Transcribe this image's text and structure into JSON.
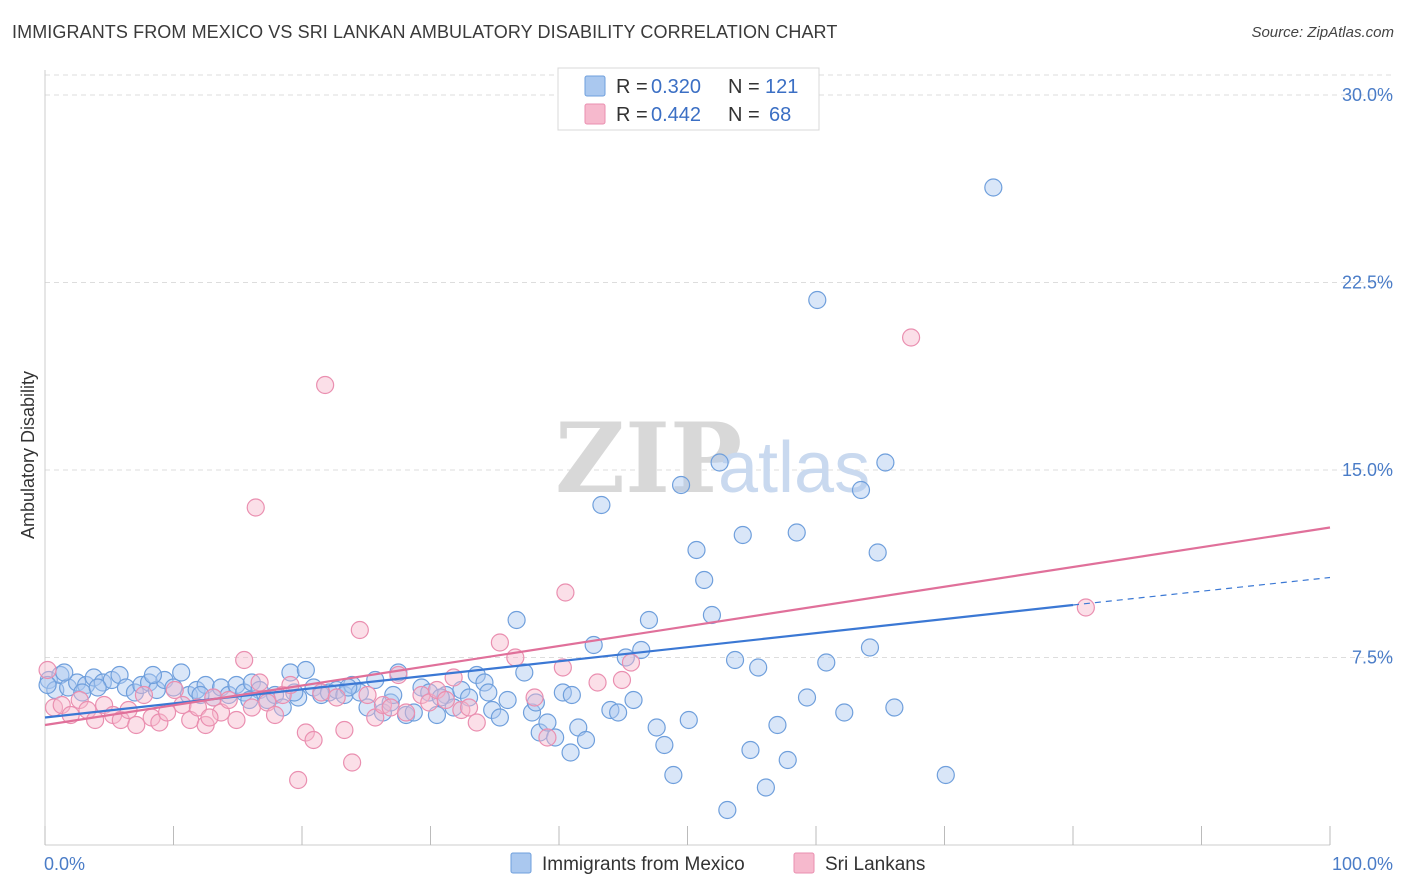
{
  "title": "IMMIGRANTS FROM MEXICO VS SRI LANKAN AMBULATORY DISABILITY CORRELATION CHART",
  "source": "Source: ZipAtlas.com",
  "watermark": {
    "zip": "ZIP",
    "atlas": "atlas"
  },
  "colors": {
    "blue_fill": "#aac8ef",
    "blue_stroke": "#6f9fdc",
    "blue_line": "#3b78d4",
    "pink_fill": "#f6b9cd",
    "pink_stroke": "#ea8fb0",
    "pink_line": "#e0709a",
    "grid": "#dddddd",
    "tick_text": "#4a7cc7"
  },
  "legend": {
    "rows": [
      {
        "r_label": "R =",
        "r_value": "0.320",
        "n_label": "N =",
        "n_value": "121"
      },
      {
        "r_label": "R =",
        "r_value": "0.442",
        "n_label": "N =",
        "n_value": "68"
      }
    ]
  },
  "chart_data": {
    "type": "scatter",
    "title": "IMMIGRANTS FROM MEXICO VS SRI LANKAN AMBULATORY DISABILITY CORRELATION CHART",
    "ylabel": "Ambulatory Disability",
    "xlim": [
      0,
      100
    ],
    "ylim": [
      0,
      31
    ],
    "x_tick_labels": [
      "0.0%",
      "100.0%"
    ],
    "y_ticks": [
      7.5,
      15.0,
      22.5,
      30.0
    ],
    "y_tick_labels": [
      "7.5%",
      "15.0%",
      "22.5%",
      "30.0%"
    ],
    "grid": true,
    "legend_position": "top-center",
    "series": [
      {
        "name": "Immigrants from Mexico",
        "color": "#6f9fdc",
        "trend": {
          "x": [
            0,
            80
          ],
          "y": [
            5.1,
            9.6
          ],
          "dashed_to": [
            100,
            10.7
          ]
        },
        "points": [
          [
            0.3,
            6.6
          ],
          [
            0.8,
            6.2
          ],
          [
            1.2,
            6.8
          ],
          [
            1.8,
            6.3
          ],
          [
            2.5,
            6.5
          ],
          [
            3.2,
            6.4
          ],
          [
            3.8,
            6.7
          ],
          [
            4.5,
            6.5
          ],
          [
            5.2,
            6.6
          ],
          [
            5.8,
            6.8
          ],
          [
            6.3,
            6.3
          ],
          [
            7.0,
            6.1
          ],
          [
            7.5,
            6.4
          ],
          [
            8.1,
            6.5
          ],
          [
            8.7,
            6.2
          ],
          [
            9.3,
            6.6
          ],
          [
            10.0,
            6.3
          ],
          [
            10.6,
            6.9
          ],
          [
            11.2,
            6.0
          ],
          [
            11.8,
            6.2
          ],
          [
            12.5,
            6.4
          ],
          [
            13.1,
            5.9
          ],
          [
            13.7,
            6.3
          ],
          [
            14.3,
            6.0
          ],
          [
            14.9,
            6.4
          ],
          [
            15.5,
            6.1
          ],
          [
            16.1,
            6.5
          ],
          [
            16.7,
            6.2
          ],
          [
            17.3,
            5.8
          ],
          [
            17.9,
            6.0
          ],
          [
            18.5,
            5.5
          ],
          [
            19.1,
            6.9
          ],
          [
            19.7,
            5.9
          ],
          [
            20.3,
            7.0
          ],
          [
            20.9,
            6.3
          ],
          [
            21.5,
            6.0
          ],
          [
            22.1,
            6.1
          ],
          [
            22.7,
            6.2
          ],
          [
            23.3,
            6.0
          ],
          [
            23.9,
            6.4
          ],
          [
            24.5,
            6.1
          ],
          [
            25.1,
            5.5
          ],
          [
            25.7,
            6.6
          ],
          [
            26.3,
            5.3
          ],
          [
            26.9,
            5.7
          ],
          [
            27.5,
            6.9
          ],
          [
            28.1,
            5.2
          ],
          [
            28.7,
            5.3
          ],
          [
            29.3,
            6.3
          ],
          [
            29.9,
            6.1
          ],
          [
            30.5,
            5.2
          ],
          [
            31.2,
            6.0
          ],
          [
            31.8,
            5.5
          ],
          [
            32.4,
            6.2
          ],
          [
            33.0,
            5.9
          ],
          [
            33.6,
            6.8
          ],
          [
            34.2,
            6.5
          ],
          [
            34.8,
            5.4
          ],
          [
            35.4,
            5.1
          ],
          [
            36.0,
            5.8
          ],
          [
            36.7,
            9.0
          ],
          [
            37.3,
            6.9
          ],
          [
            37.9,
            5.3
          ],
          [
            38.5,
            4.5
          ],
          [
            39.1,
            4.9
          ],
          [
            39.7,
            4.3
          ],
          [
            40.3,
            6.1
          ],
          [
            40.9,
            3.7
          ],
          [
            41.5,
            4.7
          ],
          [
            42.1,
            4.2
          ],
          [
            42.7,
            8.0
          ],
          [
            43.3,
            13.6
          ],
          [
            44.0,
            5.4
          ],
          [
            44.6,
            5.3
          ],
          [
            45.2,
            7.5
          ],
          [
            45.8,
            5.8
          ],
          [
            46.4,
            7.8
          ],
          [
            47.0,
            9.0
          ],
          [
            47.6,
            4.7
          ],
          [
            48.2,
            4.0
          ],
          [
            48.9,
            2.8
          ],
          [
            49.5,
            14.4
          ],
          [
            50.1,
            5.0
          ],
          [
            50.7,
            11.8
          ],
          [
            51.3,
            10.6
          ],
          [
            51.9,
            9.2
          ],
          [
            52.5,
            15.3
          ],
          [
            53.1,
            1.4
          ],
          [
            53.7,
            7.4
          ],
          [
            54.3,
            12.4
          ],
          [
            54.9,
            3.8
          ],
          [
            55.5,
            7.1
          ],
          [
            56.1,
            2.3
          ],
          [
            57.0,
            4.8
          ],
          [
            57.8,
            3.4
          ],
          [
            58.5,
            12.5
          ],
          [
            59.3,
            5.9
          ],
          [
            60.1,
            21.8
          ],
          [
            60.8,
            7.3
          ],
          [
            62.2,
            5.3
          ],
          [
            63.5,
            14.2
          ],
          [
            64.2,
            7.9
          ],
          [
            64.8,
            11.7
          ],
          [
            65.4,
            15.3
          ],
          [
            66.1,
            5.5
          ],
          [
            70.1,
            2.8
          ],
          [
            73.8,
            26.3
          ],
          [
            0.2,
            6.4
          ],
          [
            1.5,
            6.9
          ],
          [
            2.9,
            6.1
          ],
          [
            4.1,
            6.3
          ],
          [
            8.4,
            6.8
          ],
          [
            12.1,
            6.0
          ],
          [
            15.9,
            5.8
          ],
          [
            19.4,
            6.1
          ],
          [
            23.6,
            6.3
          ],
          [
            27.1,
            6.0
          ],
          [
            30.8,
            5.9
          ],
          [
            34.5,
            6.1
          ],
          [
            38.2,
            5.7
          ],
          [
            41.0,
            6.0
          ]
        ]
      },
      {
        "name": "Sri Lankans",
        "color": "#ea8fb0",
        "trend": {
          "x": [
            0,
            100
          ],
          "y": [
            4.8,
            12.7
          ]
        },
        "points": [
          [
            0.2,
            7.0
          ],
          [
            0.7,
            5.5
          ],
          [
            1.3,
            5.6
          ],
          [
            2.0,
            5.2
          ],
          [
            2.7,
            5.8
          ],
          [
            3.3,
            5.4
          ],
          [
            3.9,
            5.0
          ],
          [
            4.6,
            5.6
          ],
          [
            5.3,
            5.2
          ],
          [
            5.9,
            5.0
          ],
          [
            6.5,
            5.4
          ],
          [
            7.1,
            4.8
          ],
          [
            7.7,
            6.0
          ],
          [
            8.3,
            5.1
          ],
          [
            8.9,
            4.9
          ],
          [
            9.5,
            5.3
          ],
          [
            10.1,
            6.2
          ],
          [
            10.7,
            5.6
          ],
          [
            11.3,
            5.0
          ],
          [
            11.9,
            5.5
          ],
          [
            12.5,
            4.8
          ],
          [
            13.1,
            5.9
          ],
          [
            13.7,
            5.3
          ],
          [
            14.3,
            5.8
          ],
          [
            14.9,
            5.0
          ],
          [
            15.5,
            7.4
          ],
          [
            16.1,
            5.5
          ],
          [
            16.7,
            6.5
          ],
          [
            17.3,
            5.7
          ],
          [
            17.9,
            5.2
          ],
          [
            18.5,
            6.0
          ],
          [
            19.1,
            6.4
          ],
          [
            19.7,
            2.6
          ],
          [
            20.3,
            4.5
          ],
          [
            20.9,
            4.2
          ],
          [
            21.5,
            6.1
          ],
          [
            21.8,
            18.4
          ],
          [
            22.7,
            5.9
          ],
          [
            23.3,
            4.6
          ],
          [
            23.9,
            3.3
          ],
          [
            24.5,
            8.6
          ],
          [
            25.1,
            6.0
          ],
          [
            25.7,
            5.1
          ],
          [
            26.3,
            5.6
          ],
          [
            26.9,
            5.5
          ],
          [
            27.5,
            6.8
          ],
          [
            28.1,
            5.3
          ],
          [
            29.3,
            6.0
          ],
          [
            29.9,
            5.7
          ],
          [
            30.5,
            6.2
          ],
          [
            31.2,
            5.8
          ],
          [
            31.8,
            6.7
          ],
          [
            32.4,
            5.4
          ],
          [
            33.0,
            5.5
          ],
          [
            33.6,
            4.9
          ],
          [
            35.4,
            8.1
          ],
          [
            36.6,
            7.5
          ],
          [
            38.1,
            5.9
          ],
          [
            39.1,
            4.3
          ],
          [
            40.3,
            7.1
          ],
          [
            40.5,
            10.1
          ],
          [
            43.0,
            6.5
          ],
          [
            44.9,
            6.6
          ],
          [
            45.6,
            7.3
          ],
          [
            67.4,
            20.3
          ],
          [
            81.0,
            9.5
          ],
          [
            12.8,
            5.1
          ],
          [
            16.4,
            13.5
          ]
        ]
      }
    ]
  },
  "bottom_legend": [
    {
      "label": "Immigrants from Mexico"
    },
    {
      "label": "Sri Lankans"
    }
  ]
}
